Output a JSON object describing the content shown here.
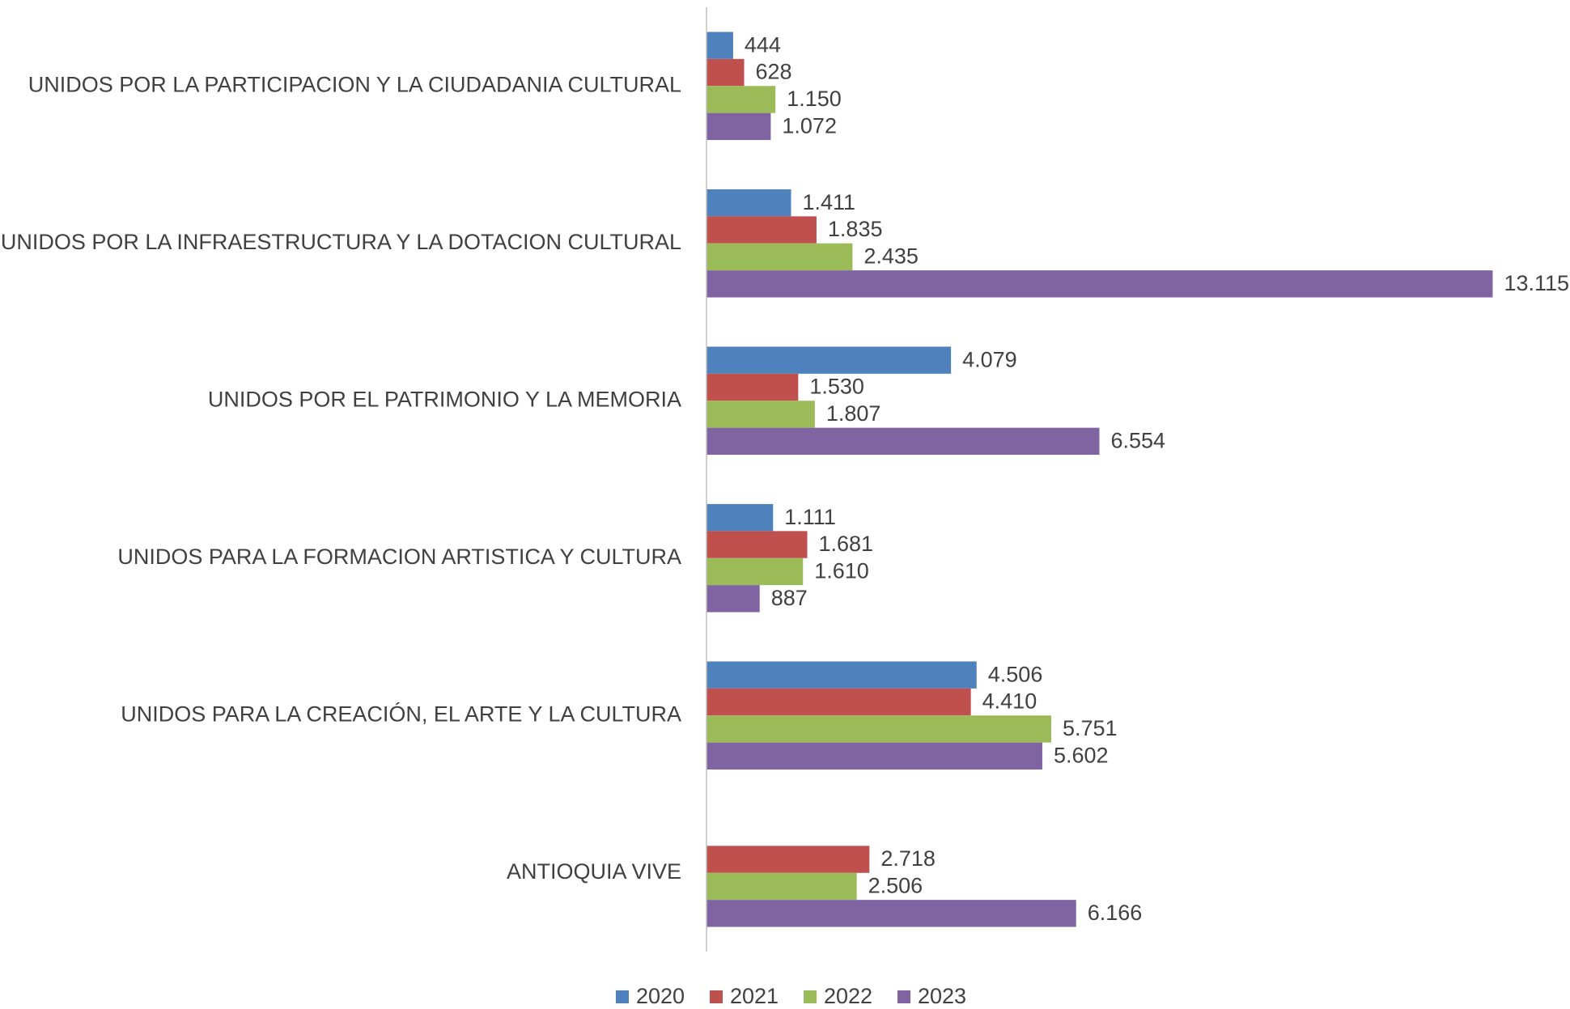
{
  "chart_data": {
    "type": "bar",
    "orientation": "horizontal",
    "categories": [
      "UNIDOS POR LA PARTICIPACION Y LA CIUDADANIA CULTURAL",
      "UNIDOS POR LA INFRAESTRUCTURA Y LA DOTACION CULTURAL",
      "UNIDOS POR EL PATRIMONIO Y LA MEMORIA",
      "UNIDOS PARA LA FORMACION ARTISTICA Y CULTURA",
      "UNIDOS PARA LA CREACIÓN, EL ARTE Y LA CULTURA",
      "ANTIOQUIA VIVE"
    ],
    "series": [
      {
        "name": "2020",
        "color": "#4f81bd",
        "values": [
          444,
          1411,
          4079,
          1111,
          4506,
          null
        ],
        "value_labels": [
          "444",
          "1.411",
          "4.079",
          "1.111",
          "4.506",
          null
        ]
      },
      {
        "name": "2021",
        "color": "#c0504d",
        "values": [
          628,
          1835,
          1530,
          1681,
          4410,
          2718
        ],
        "value_labels": [
          "628",
          "1.835",
          "1.530",
          "1.681",
          "4.410",
          "2.718"
        ]
      },
      {
        "name": "2022",
        "color": "#9bbb59",
        "values": [
          1150,
          2435,
          1807,
          1610,
          5751,
          2506
        ],
        "value_labels": [
          "1.150",
          "2.435",
          "1.807",
          "1.610",
          "5.751",
          "2.506"
        ]
      },
      {
        "name": "2023",
        "color": "#8064a2",
        "values": [
          1072,
          13115,
          6554,
          887,
          5602,
          6166
        ],
        "value_labels": [
          "1.072",
          "13.115",
          "6.554",
          "887",
          "5.602",
          "6.166"
        ]
      }
    ],
    "xlim": [
      0,
      14000
    ],
    "legend": "bottom"
  }
}
